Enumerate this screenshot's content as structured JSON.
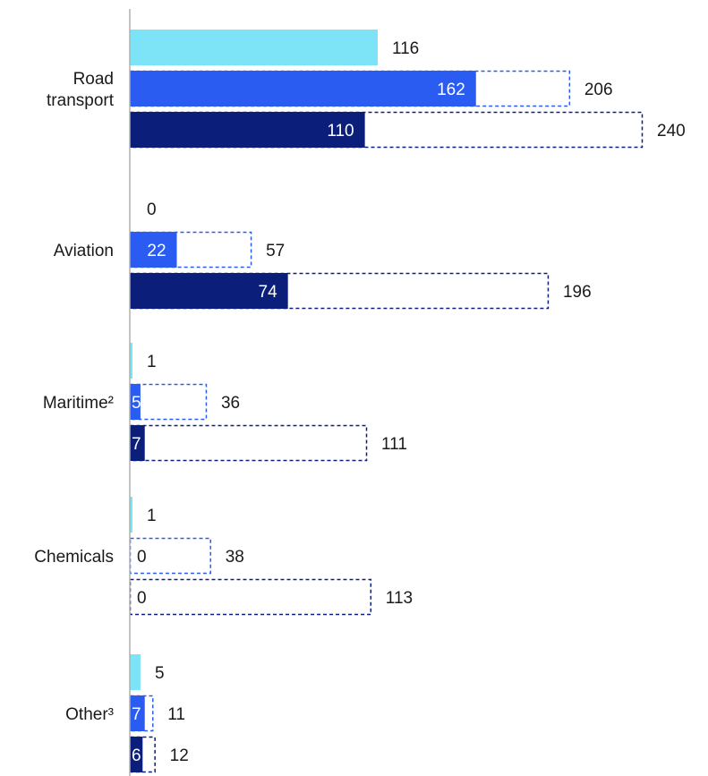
{
  "chart_data": {
    "type": "bar",
    "orientation": "horizontal",
    "categories": [
      "Road transport",
      "Aviation",
      "Maritime²",
      "Chemicals",
      "Other³"
    ],
    "category_lines": [
      [
        "Road",
        "transport"
      ],
      [
        "Aviation"
      ],
      [
        "Maritime²"
      ],
      [
        "Chemicals"
      ],
      [
        "Other³"
      ]
    ],
    "xlim": [
      0,
      240
    ],
    "series": [
      {
        "color": "#7de3f6",
        "values": [
          116,
          0,
          1,
          1,
          5
        ],
        "dashed_total": null
      },
      {
        "color": "#2a5cf2",
        "values": [
          162,
          22,
          5,
          0,
          7
        ],
        "totals": [
          206,
          57,
          36,
          38,
          11
        ],
        "outline_color": "#2a5cf2"
      },
      {
        "color": "#0b1e7a",
        "values": [
          110,
          74,
          7,
          0,
          6
        ],
        "totals": [
          240,
          196,
          111,
          113,
          12
        ],
        "outline_color": "#0b1e7a"
      }
    ]
  }
}
